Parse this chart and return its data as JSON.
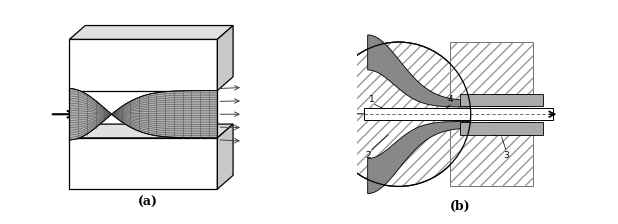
{
  "fig_width": 6.18,
  "fig_height": 2.24,
  "dpi": 100,
  "bg_color": "#ffffff",
  "label_a": "(a)",
  "label_b": "(b)",
  "lc": "#000000",
  "hatch_gray": "#777777",
  "dark_gray": "#888888",
  "mid_gray": "#aaaaaa",
  "light_gray": "#cccccc"
}
